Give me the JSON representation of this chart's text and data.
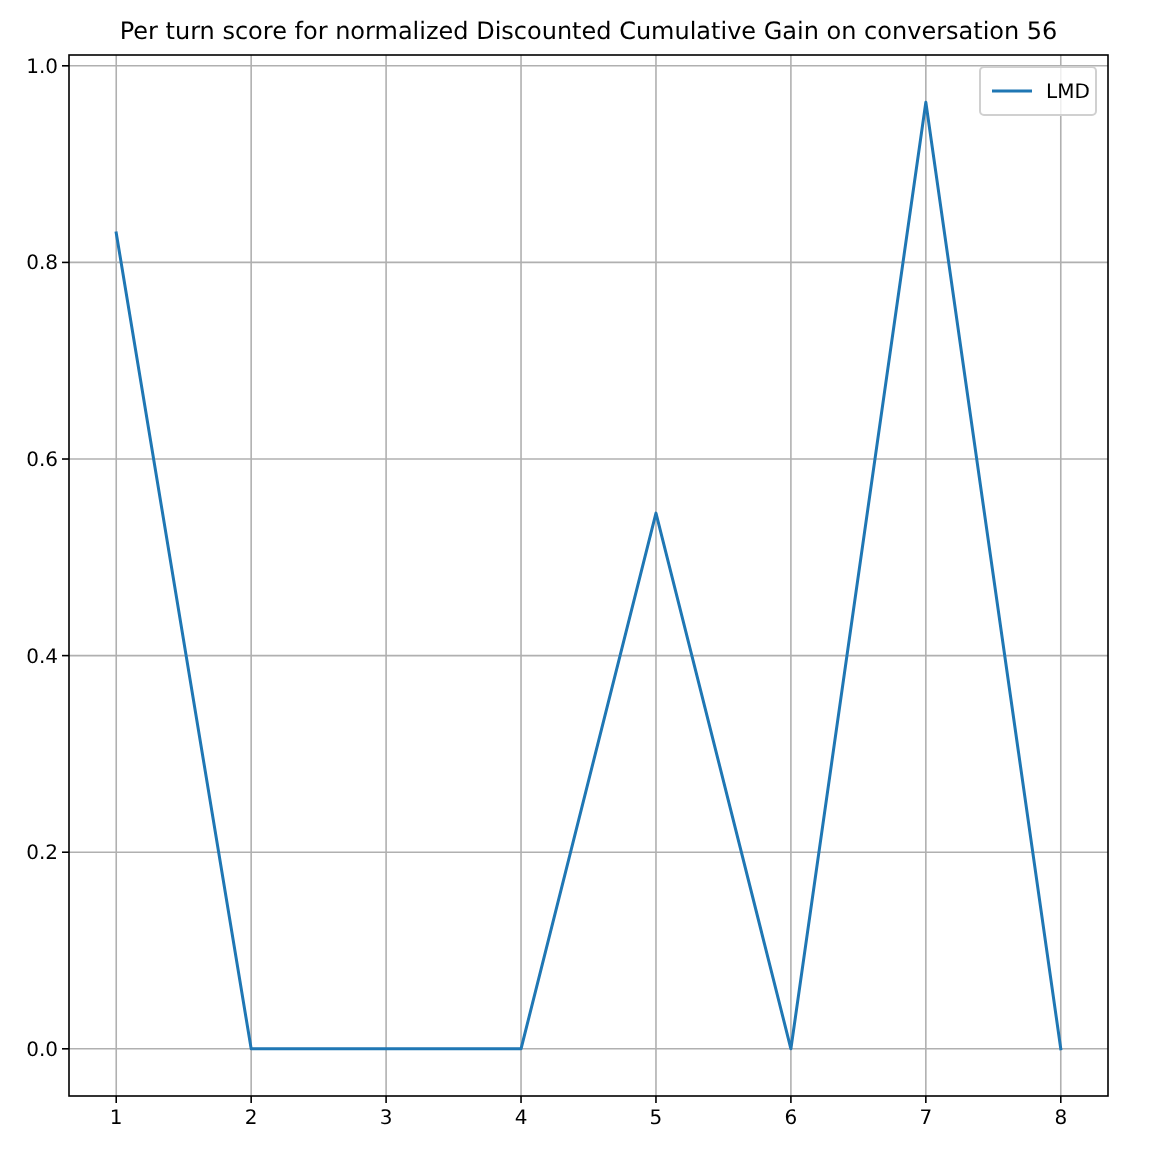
{
  "chart_data": {
    "type": "line",
    "title": "Per turn score for normalized Discounted Cumulative Gain on conversation 56",
    "x": [
      1,
      2,
      3,
      4,
      5,
      6,
      7,
      8
    ],
    "series": [
      {
        "name": "LMD",
        "color": "#1f77b4",
        "values": [
          0.83,
          0,
          0,
          0,
          0.545,
          0,
          0.963,
          0
        ]
      }
    ],
    "xlim": [
      0.65,
      8.35
    ],
    "xticks": [
      1,
      2,
      3,
      4,
      5,
      6,
      7,
      8
    ],
    "ylim": [
      -0.048,
      1.011
    ],
    "yticks": [
      {
        "value": 0,
        "label": "0.0"
      },
      {
        "value": 0.2,
        "label": "0.2"
      },
      {
        "value": 0.4,
        "label": "0.4"
      },
      {
        "value": 0.6,
        "label": "0.6"
      },
      {
        "value": 0.8,
        "label": "0.8"
      },
      {
        "value": 1,
        "label": "1.0"
      }
    ],
    "grid": true,
    "legend": "top right",
    "marker": "none",
    "line_style": "solid"
  }
}
